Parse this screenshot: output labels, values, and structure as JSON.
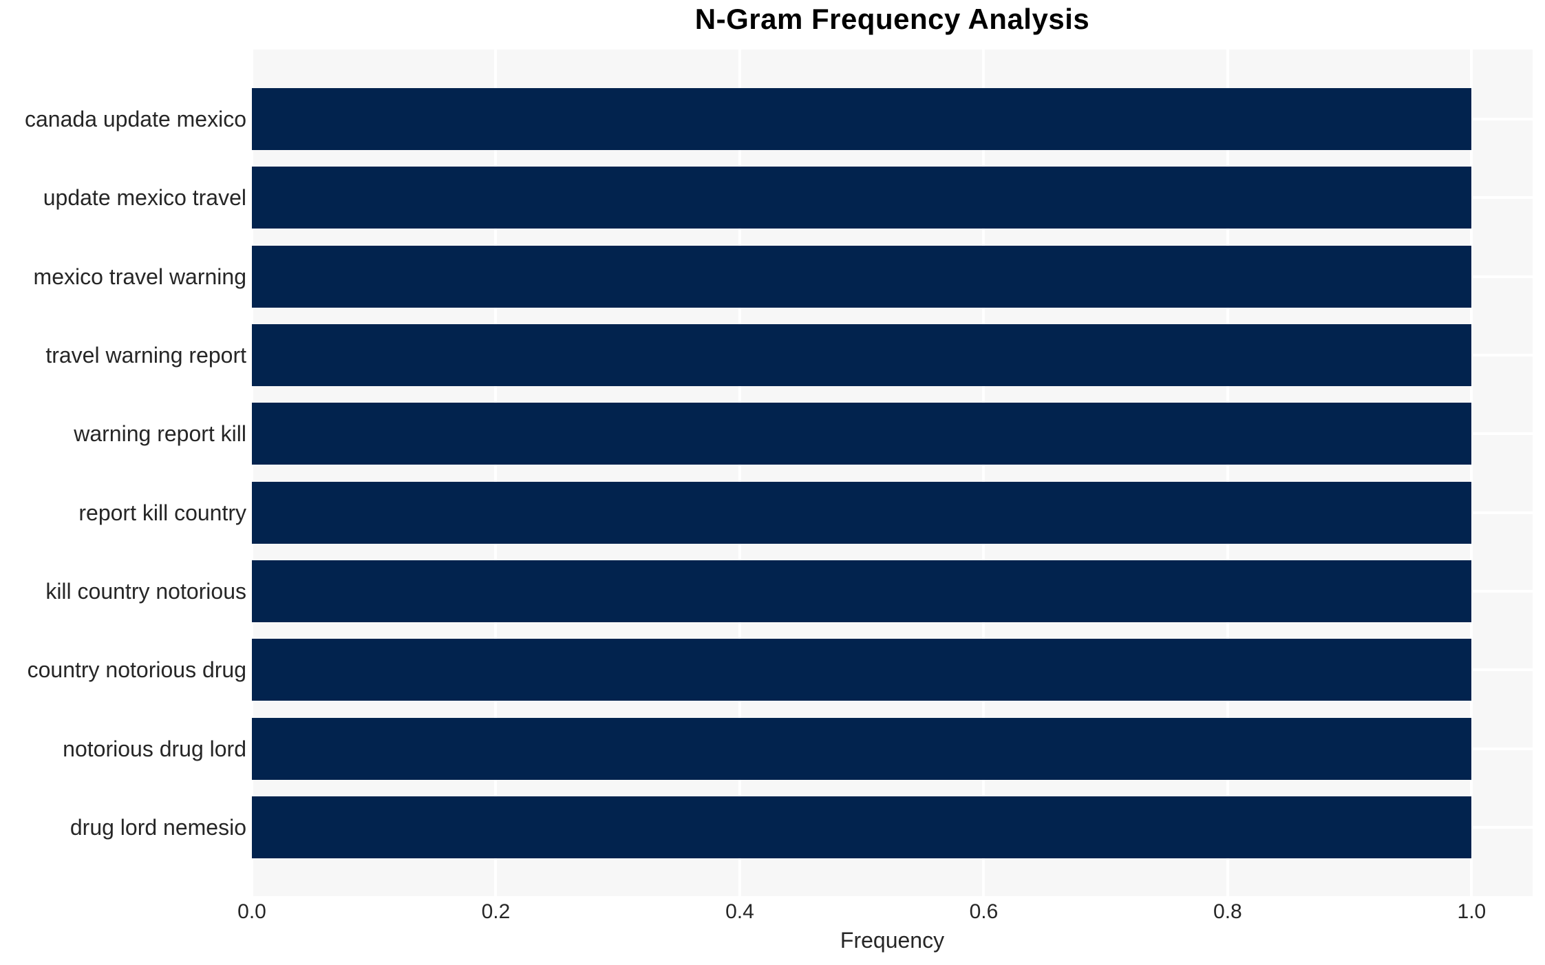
{
  "title": "N-Gram Frequency Analysis",
  "axes": {
    "x_label": "Frequency",
    "x_tick_labels": [
      "0.0",
      "0.2",
      "0.4",
      "0.6",
      "0.8",
      "1.0"
    ]
  },
  "colors": {
    "bar": "#02234e",
    "plot_background": "#f7f7f7",
    "gridline": "#ffffff",
    "tick_text": "#262626",
    "title_text": "#000000",
    "figure_background": "#ffffff"
  },
  "chart_data": {
    "type": "bar",
    "orientation": "horizontal",
    "title": "N-Gram Frequency Analysis",
    "xlabel": "Frequency",
    "ylabel": "",
    "categories": [
      "canada update mexico",
      "update mexico travel",
      "mexico travel warning",
      "travel warning report",
      "warning report kill",
      "report kill country",
      "kill country notorious",
      "country notorious drug",
      "notorious drug lord",
      "drug lord nemesio"
    ],
    "values": [
      1.0,
      1.0,
      1.0,
      1.0,
      1.0,
      1.0,
      1.0,
      1.0,
      1.0,
      1.0
    ],
    "xlim": [
      0,
      1.05
    ],
    "xticks": [
      0,
      0.2,
      0.4,
      0.6,
      0.8,
      1.0
    ],
    "grid": true,
    "grid_style": "white lines on light gray plot background, vertical at x ticks, horizontal at category centers",
    "legend": false
  }
}
